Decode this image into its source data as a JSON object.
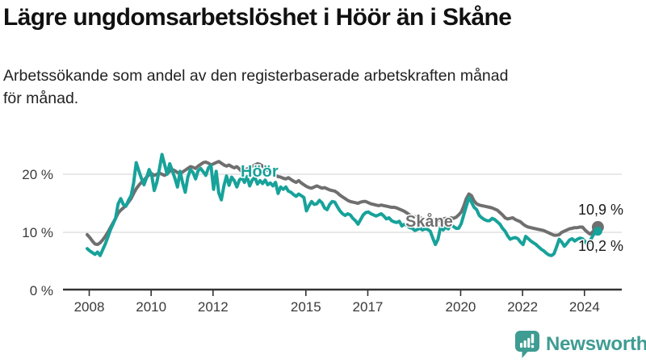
{
  "title": "Lägre ungdomsarbetslöshet i Höör än i Skåne",
  "subtitle_lines": [
    "Arbetssökande som andel av den registerbaserade arbetskraften månad",
    "för månad."
  ],
  "branding": {
    "logo_text": "Newsworthy"
  },
  "colors": {
    "hoor": "#17A29A",
    "skane": "#6F6F6F",
    "grid": "#E0E0E0",
    "axis": "#333333",
    "axis_text": "#3a3a3a",
    "value_label": "#1a1a1a",
    "logo": "#3E9C92"
  },
  "chart_data": {
    "type": "line",
    "unit": "%",
    "frequency": "monthly",
    "x_start": "2008-01",
    "x_end": "2024-07",
    "ylim": [
      0,
      25
    ],
    "grid": "horizontal",
    "legend_position": "inline-labels",
    "y_ticks": [
      {
        "value": 0,
        "label": "0 %"
      },
      {
        "value": 10,
        "label": "10 %"
      },
      {
        "value": 20,
        "label": "20 %"
      }
    ],
    "x_ticks": [
      {
        "year": 2008,
        "label": "2008"
      },
      {
        "year": 2010,
        "label": "2010"
      },
      {
        "year": 2012,
        "label": "2012"
      },
      {
        "year": 2015,
        "label": "2015"
      },
      {
        "year": 2017,
        "label": "2017"
      },
      {
        "year": 2020,
        "label": "2020"
      },
      {
        "year": 2022,
        "label": "2022"
      },
      {
        "year": 2024,
        "label": "2024"
      }
    ],
    "series": [
      {
        "id": "skane",
        "name": "Skåne",
        "color": "#6F6F6F",
        "end_label": "10,9 %",
        "values": [
          9.6,
          9.1,
          8.5,
          8.0,
          7.9,
          8.2,
          8.7,
          9.3,
          10.0,
          10.8,
          11.6,
          12.4,
          13.3,
          13.8,
          14.2,
          14.6,
          15.2,
          15.8,
          16.7,
          17.5,
          18.1,
          18.6,
          19.0,
          19.5,
          19.9,
          20.1,
          19.8,
          20.0,
          20.2,
          20.0,
          19.8,
          20.1,
          20.5,
          20.8,
          20.6,
          20.3,
          20.1,
          20.4,
          20.7,
          21.0,
          21.3,
          21.2,
          21.0,
          21.4,
          21.7,
          22.0,
          22.1,
          21.9,
          21.6,
          21.8,
          22.0,
          22.2,
          21.9,
          21.6,
          21.4,
          21.6,
          21.3,
          21.1,
          21.3,
          20.9,
          20.4,
          20.6,
          20.9,
          21.2,
          21.4,
          21.6,
          21.8,
          21.7,
          21.4,
          21.0,
          20.7,
          20.4,
          20.0,
          19.8,
          19.6,
          19.5,
          19.3,
          19.2,
          19.4,
          19.1,
          18.8,
          18.6,
          18.9,
          18.5,
          18.2,
          17.9,
          17.7,
          17.6,
          17.8,
          18.0,
          17.8,
          17.6,
          17.7,
          17.5,
          17.3,
          17.2,
          17.1,
          16.8,
          16.4,
          16.1,
          15.8,
          15.5,
          15.3,
          15.2,
          15.1,
          15.0,
          15.2,
          15.3,
          15.3,
          15.1,
          14.9,
          14.8,
          14.7,
          14.6,
          14.7,
          14.6,
          14.5,
          14.4,
          14.3,
          14.3,
          14.2,
          14.0,
          13.8,
          13.6,
          13.3,
          13.0,
          12.8,
          12.7,
          12.6,
          12.5,
          12.4,
          12.4,
          12.4,
          12.3,
          12.2,
          12.1,
          12.0,
          12.1,
          12.3,
          12.4,
          12.3,
          12.5,
          12.4,
          12.6,
          13.0,
          13.5,
          14.5,
          15.8,
          16.6,
          16.3,
          15.4,
          14.9,
          14.7,
          14.6,
          14.5,
          14.4,
          14.3,
          14.2,
          14.0,
          13.8,
          13.4,
          13.0,
          12.5,
          12.3,
          12.4,
          12.5,
          12.2,
          12.0,
          11.8,
          11.4,
          11.1,
          10.9,
          10.8,
          10.7,
          10.6,
          10.5,
          10.4,
          10.3,
          10.1,
          9.9,
          9.7,
          9.5,
          9.5,
          9.6,
          10.0,
          10.2,
          10.4,
          10.6,
          10.7,
          10.8,
          10.8,
          10.9,
          10.9,
          10.4,
          10.0,
          9.7,
          10.1,
          10.6,
          10.9
        ]
      },
      {
        "id": "hoor",
        "name": "Höör",
        "color": "#17A29A",
        "end_label": "10,2 %",
        "values": [
          7.2,
          6.8,
          6.5,
          6.2,
          6.6,
          6.0,
          7.0,
          8.0,
          9.2,
          10.4,
          11.4,
          12.4,
          14.9,
          15.8,
          14.8,
          14.5,
          15.5,
          16.3,
          18.5,
          22.0,
          20.6,
          19.3,
          18.2,
          19.4,
          20.8,
          19.8,
          17.2,
          18.6,
          20.9,
          23.4,
          21.7,
          20.0,
          21.8,
          20.6,
          19.3,
          17.8,
          20.5,
          18.5,
          16.9,
          19.5,
          20.8,
          20.3,
          19.2,
          20.6,
          21.0,
          20.4,
          19.8,
          21.1,
          21.5,
          17.4,
          20.5,
          16.8,
          15.6,
          18.0,
          19.7,
          18.1,
          19.5,
          18.9,
          17.8,
          19.0,
          19.4,
          18.6,
          19.6,
          18.0,
          19.0,
          19.5,
          18.3,
          18.9,
          18.4,
          19.0,
          18.2,
          18.5,
          18.0,
          18.6,
          16.7,
          17.8,
          17.4,
          17.8,
          17.1,
          16.9,
          16.5,
          16.2,
          16.6,
          16.3,
          16.0,
          13.7,
          14.6,
          15.3,
          14.8,
          14.9,
          15.5,
          15.1,
          14.2,
          13.9,
          14.8,
          15.3,
          15.2,
          14.4,
          13.7,
          13.2,
          12.9,
          13.2,
          13.0,
          12.4,
          12.0,
          11.4,
          12.2,
          13.0,
          13.4,
          13.5,
          13.2,
          13.0,
          12.8,
          13.0,
          13.2,
          12.8,
          12.3,
          12.5,
          12.0,
          11.8,
          11.7,
          11.9,
          11.1,
          11.4,
          11.2,
          10.8,
          10.7,
          10.3,
          10.5,
          10.7,
          10.4,
          10.6,
          10.5,
          10.2,
          9.0,
          7.9,
          8.8,
          10.9,
          10.4,
          10.9,
          10.6,
          11.4,
          11.0,
          10.7,
          10.7,
          11.5,
          13.0,
          14.5,
          16.0,
          15.2,
          14.3,
          13.9,
          12.9,
          12.5,
          12.2,
          12.0,
          12.0,
          12.4,
          12.2,
          11.8,
          11.4,
          10.7,
          10.2,
          9.4,
          8.8,
          9.0,
          9.1,
          8.9,
          8.3,
          7.9,
          9.3,
          8.9,
          8.5,
          8.2,
          7.9,
          7.5,
          7.1,
          6.8,
          6.4,
          6.1,
          6.0,
          6.3,
          7.5,
          8.8,
          8.3,
          7.6,
          8.1,
          8.7,
          8.9,
          8.5,
          8.8,
          9.0,
          8.9,
          8.4,
          7.9,
          8.6,
          9.4,
          10.0,
          10.2
        ]
      }
    ]
  }
}
